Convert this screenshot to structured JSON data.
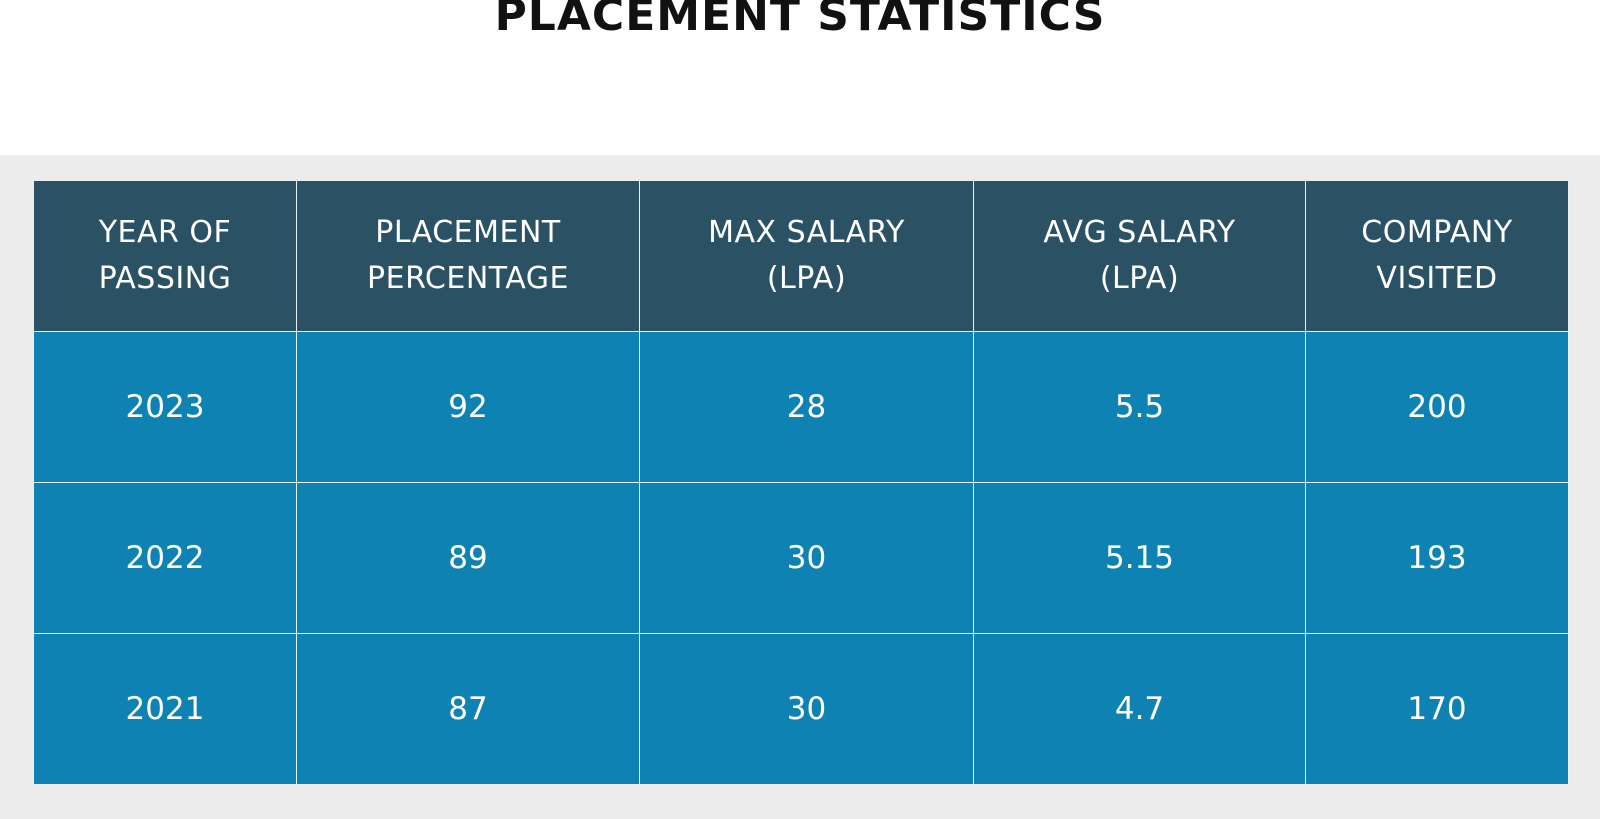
{
  "title": "PLACEMENT STATISTICS",
  "table": {
    "header": [
      [
        "YEAR OF",
        "PASSING"
      ],
      [
        "PLACEMENT",
        "PERCENTAGE"
      ],
      [
        "MAX SALARY",
        "(LPA)"
      ],
      [
        "AVG SALARY",
        "(LPA)"
      ],
      [
        "COMPANY",
        "VISITED"
      ]
    ],
    "rows": [
      [
        2023,
        92,
        28,
        5.5,
        200
      ],
      [
        2022,
        89,
        30,
        5.15,
        193
      ],
      [
        2021,
        87,
        30,
        4.7,
        170
      ]
    ]
  }
}
